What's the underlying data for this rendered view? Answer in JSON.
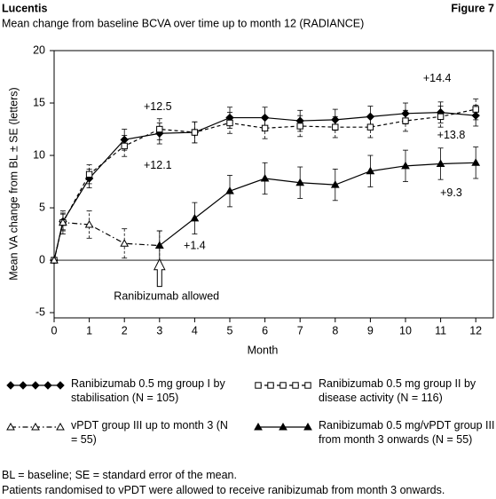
{
  "chart_data": {
    "type": "line",
    "header": "Lucentis",
    "figure_label": "Figure 7",
    "title": "Mean change from baseline BCVA over time up to month 12 (RADIANCE)",
    "x_label": "Month",
    "y_label": "Mean VA change from BL ± SE (letters)",
    "xlim": [
      0,
      12.5
    ],
    "xticks": [
      0,
      1,
      2,
      3,
      4,
      5,
      6,
      7,
      8,
      9,
      10,
      11,
      12
    ],
    "ylim": [
      -5.5,
      20
    ],
    "yticks": [
      -5,
      0,
      5,
      10,
      15,
      20
    ],
    "series": [
      {
        "name": "Ranibizumab 0.5 mg group I by stabilisation (N = 105)",
        "color": "#000000",
        "marker": "diamond",
        "dash": "solid",
        "x": [
          0,
          0.25,
          1,
          2,
          3,
          4,
          5,
          6,
          7,
          8,
          9,
          10,
          11,
          12
        ],
        "values": [
          0,
          3.7,
          7.8,
          11.5,
          12.1,
          12.2,
          13.6,
          13.6,
          13.3,
          13.4,
          13.7,
          14.0,
          14.1,
          13.8
        ],
        "errors": [
          0,
          0.8,
          0.9,
          1.0,
          1.0,
          1.0,
          1.0,
          1.0,
          1.0,
          1.0,
          1.0,
          1.0,
          1.0,
          1.0
        ]
      },
      {
        "name": "Ranibizumab 0.5 mg group II by disease activity (N = 116)",
        "color": "#000000",
        "marker": "square",
        "dash": "dashed",
        "x": [
          0,
          0.25,
          1,
          2,
          3,
          4,
          5,
          6,
          7,
          8,
          9,
          10,
          11,
          12
        ],
        "values": [
          0,
          3.6,
          8.2,
          10.9,
          12.5,
          12.2,
          13.1,
          12.6,
          12.8,
          12.7,
          12.7,
          13.3,
          13.7,
          14.4
        ],
        "errors": [
          0,
          0.8,
          0.9,
          1.0,
          1.0,
          1.0,
          1.0,
          1.0,
          1.0,
          1.0,
          1.0,
          1.0,
          1.0,
          1.0
        ]
      },
      {
        "name": "vPDT group III up to month 3 (N = 55)",
        "color": "#000000",
        "marker": "triangle-open",
        "dash": "dashdot",
        "x": [
          0,
          0.25,
          1,
          2,
          3
        ],
        "values": [
          0,
          3.6,
          3.4,
          1.6,
          1.4
        ],
        "errors": [
          0,
          1.1,
          1.3,
          1.4,
          1.4
        ]
      },
      {
        "name": "Ranibizumab 0.5 mg/vPDT group III from month 3 onwards (N = 55)",
        "color": "#000000",
        "marker": "triangle",
        "dash": "solid",
        "x": [
          3,
          4,
          5,
          6,
          7,
          8,
          9,
          10,
          11,
          12
        ],
        "values": [
          1.4,
          4.0,
          6.6,
          7.8,
          7.4,
          7.2,
          8.5,
          9.0,
          9.2,
          9.3
        ],
        "errors": [
          1.4,
          1.5,
          1.5,
          1.5,
          1.5,
          1.5,
          1.5,
          1.5,
          1.5,
          1.5
        ]
      }
    ],
    "annotations": [
      "+12.5",
      "+12.1",
      "+1.4",
      "Ranibizumab allowed",
      "+14.4",
      "+13.8",
      "+9.3"
    ],
    "footnotes": [
      "BL = baseline; SE = standard error of the mean.",
      "Patients randomised to vPDT were allowed to receive ranibizumab from month 3 onwards."
    ]
  }
}
